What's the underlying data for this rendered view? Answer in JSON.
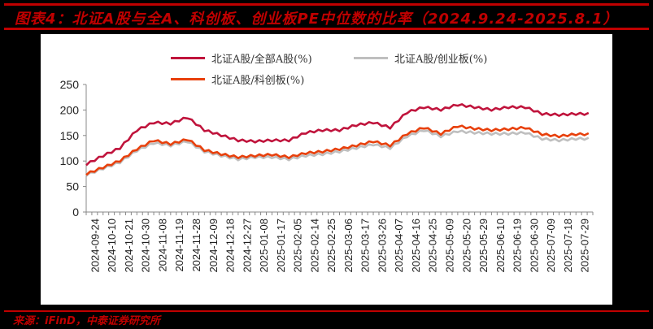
{
  "title": "图表4：北证A股与全A、科创板、创业板PE中位数的比率（2024.9.24-2025.8.1）",
  "source": "来源：iFinD，中泰证券研究所",
  "colors": {
    "accent": "#c00000",
    "series_all_a": "#c0143c",
    "series_gem": "#bfbfbf",
    "series_star": "#e8400c"
  },
  "legend": [
    {
      "label": "北证A股/全部A股(%)",
      "color": "#c0143c"
    },
    {
      "label": "北证A股/创业板(%)",
      "color": "#bfbfbf"
    },
    {
      "label": "北证A股/科创板(%)",
      "color": "#e8400c"
    }
  ],
  "chart_data": {
    "type": "line",
    "title": "北证A股与全A、科创板、创业板PE中位数的比率（2024.9.24-2025.8.1）",
    "xlabel": "",
    "ylabel": "",
    "ylim": [
      0,
      250
    ],
    "yticks": [
      0,
      50,
      100,
      150,
      200,
      250
    ],
    "grid": false,
    "legend_position": "top",
    "categories": [
      "2024-09-24",
      "2024-10-10",
      "2024-10-21",
      "2024-10-30",
      "2024-11-08",
      "2024-11-19",
      "2024-11-28",
      "2024-12-09",
      "2024-12-18",
      "2024-12-27",
      "2025-01-08",
      "2025-01-17",
      "2025-02-05",
      "2025-02-14",
      "2025-02-25",
      "2025-03-06",
      "2025-03-17",
      "2025-03-26",
      "2025-04-07",
      "2025-04-16",
      "2025-04-25",
      "2025-05-09",
      "2025-05-20",
      "2025-05-29",
      "2025-06-10",
      "2025-06-19",
      "2025-06-30",
      "2025-07-09",
      "2025-07-18",
      "2025-07-29"
    ],
    "series": [
      {
        "name": "北证A股/全部A股(%)",
        "values": [
          93,
          110,
          125,
          160,
          175,
          173,
          185,
          160,
          150,
          140,
          138,
          140,
          140,
          155,
          160,
          160,
          170,
          175,
          165,
          195,
          205,
          200,
          210,
          205,
          200,
          205,
          205,
          192,
          190,
          192
        ]
      },
      {
        "name": "北证A股/创业板(%)",
        "values": [
          72,
          85,
          97,
          120,
          135,
          130,
          138,
          118,
          110,
          103,
          107,
          107,
          103,
          110,
          113,
          118,
          125,
          132,
          125,
          148,
          160,
          148,
          158,
          155,
          153,
          153,
          155,
          143,
          140,
          143
        ]
      },
      {
        "name": "北证A股/科创板(%)",
        "values": [
          74,
          87,
          100,
          123,
          140,
          133,
          142,
          121,
          113,
          107,
          110,
          112,
          107,
          115,
          118,
          123,
          130,
          138,
          130,
          153,
          165,
          153,
          168,
          163,
          160,
          162,
          165,
          152,
          148,
          152
        ]
      }
    ]
  }
}
